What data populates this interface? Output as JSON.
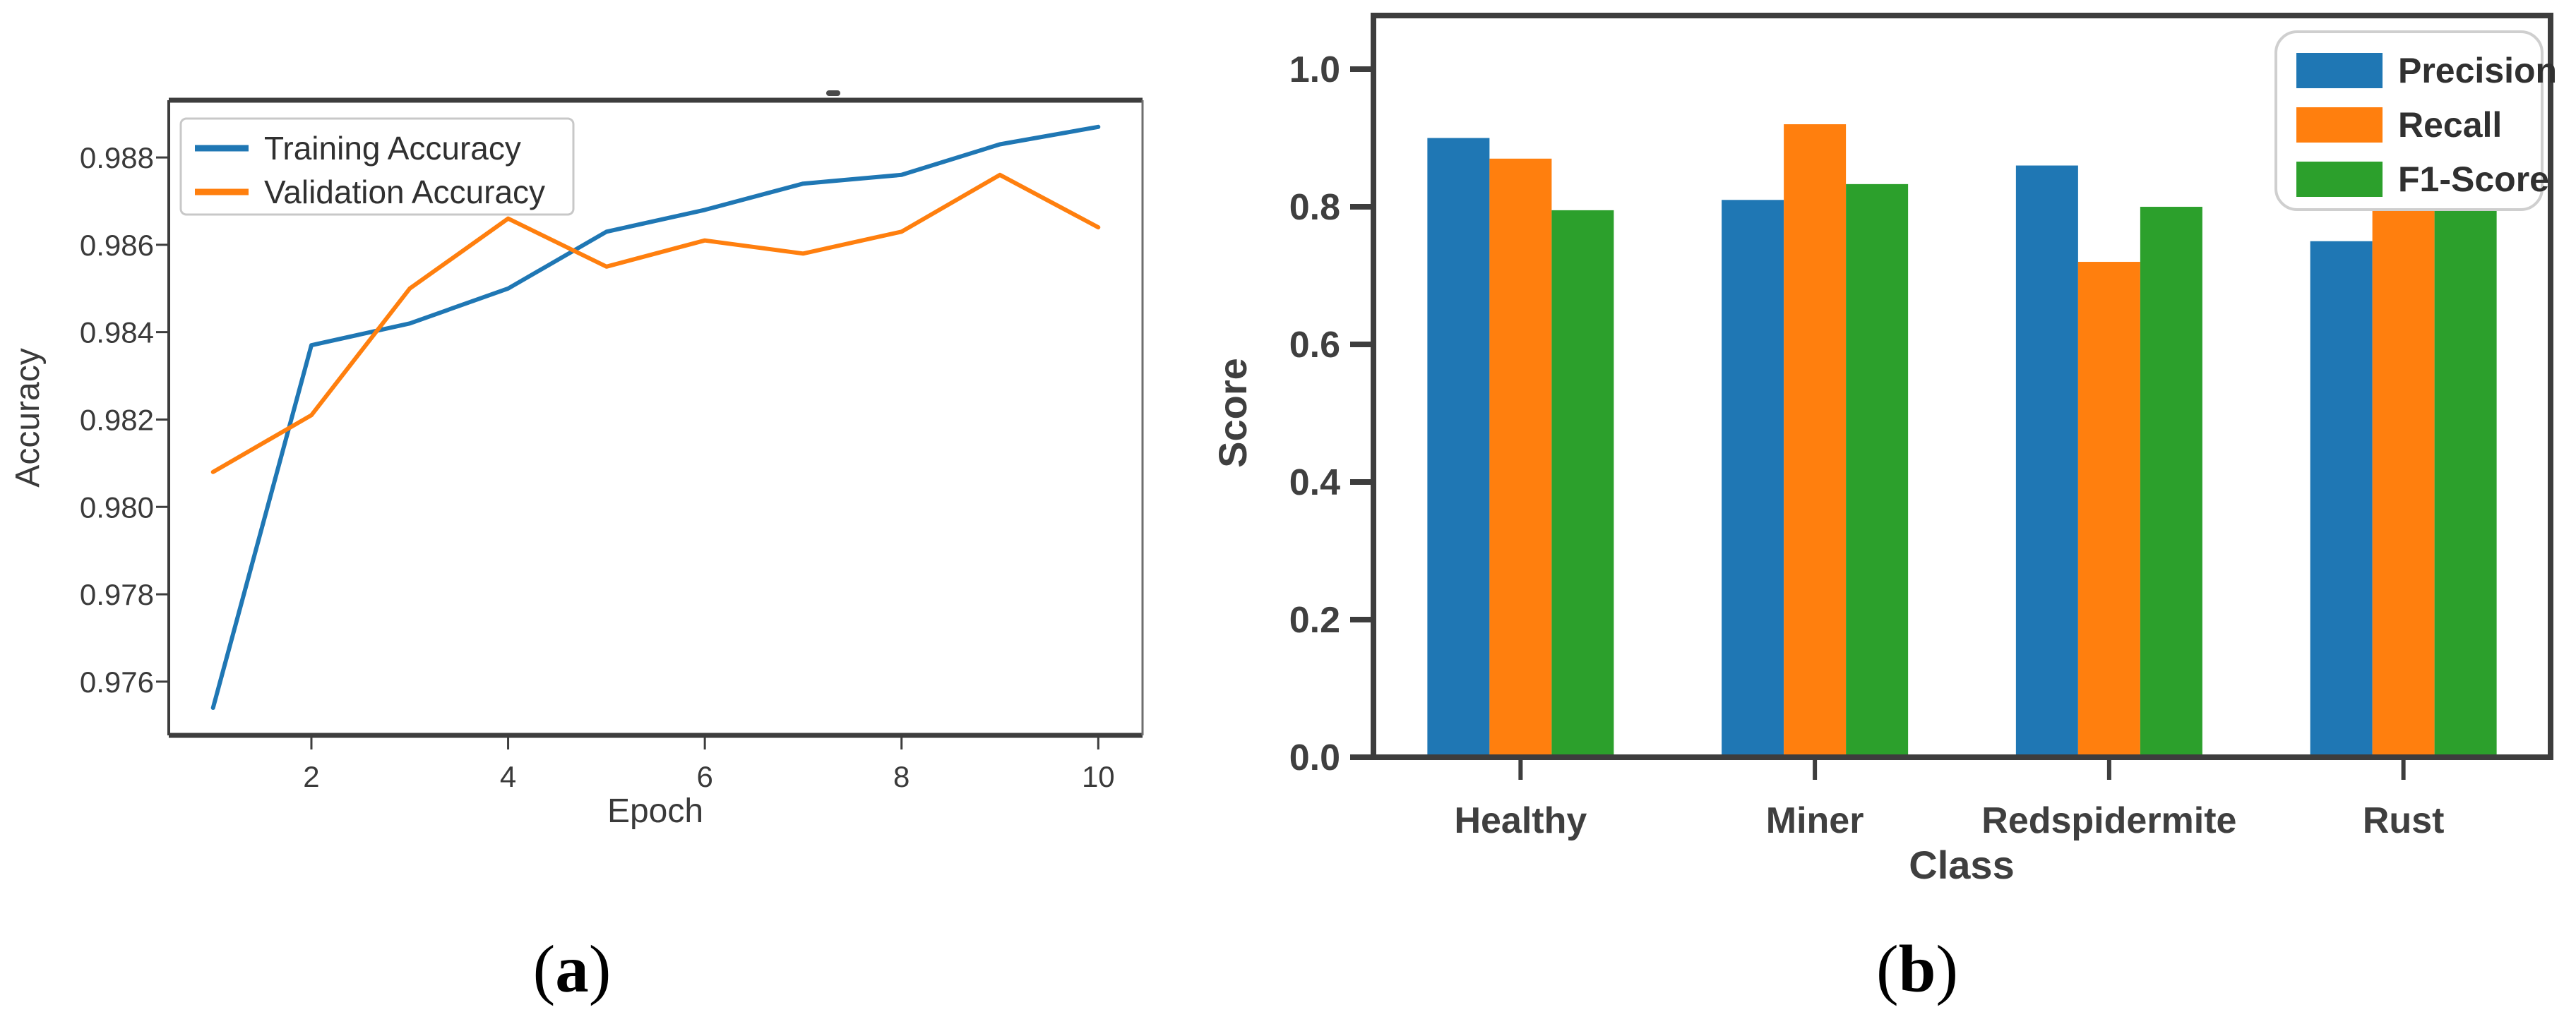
{
  "figure": {
    "background": "#ffffff",
    "captions": [
      {
        "open": "(",
        "letter": "a",
        "close": ")"
      },
      {
        "open": "(",
        "letter": "b",
        "close": ")"
      }
    ]
  },
  "chart_data": [
    {
      "id": "accuracy-line-chart",
      "type": "line",
      "title": "",
      "xlabel": "Epoch",
      "ylabel": "Accuracy",
      "x": [
        1,
        2,
        3,
        4,
        5,
        6,
        7,
        8,
        9,
        10
      ],
      "xticks": [
        2,
        4,
        6,
        8,
        10
      ],
      "yticks": [
        0.976,
        0.978,
        0.98,
        0.982,
        0.984,
        0.986,
        0.988
      ],
      "xlim": [
        0.55,
        10.45
      ],
      "ylim": [
        0.97477,
        0.98931
      ],
      "grid": false,
      "legend_position": "upper left",
      "series": [
        {
          "name": "Training Accuracy",
          "color": "#1f77b4",
          "values": [
            0.9754,
            0.9837,
            0.9842,
            0.985,
            0.9863,
            0.9868,
            0.9874,
            0.9876,
            0.9883,
            0.9887
          ]
        },
        {
          "name": "Validation Accuracy",
          "color": "#ff7f0e",
          "values": [
            0.9808,
            0.9821,
            0.985,
            0.9866,
            0.9855,
            0.9861,
            0.9858,
            0.9863,
            0.9876,
            0.9864
          ]
        }
      ]
    },
    {
      "id": "metrics-bar-chart",
      "type": "bar",
      "title": "",
      "xlabel": "Class",
      "ylabel": "Score",
      "categories": [
        "Healthy",
        "Miner",
        "Redspidermite",
        "Rust"
      ],
      "yticks": [
        0.0,
        0.2,
        0.4,
        0.6,
        0.8,
        1.0
      ],
      "ylim": [
        0,
        1.078
      ],
      "grid": false,
      "legend_position": "upper right",
      "series": [
        {
          "name": "Precision",
          "color": "#1f77b4",
          "values": [
            0.9,
            0.81,
            0.86,
            0.75
          ]
        },
        {
          "name": "Recall",
          "color": "#ff7f0e",
          "values": [
            0.87,
            0.92,
            0.72,
            0.81
          ]
        },
        {
          "name": "F1-Score",
          "color": "#2ca02c",
          "values": [
            0.795,
            0.833,
            0.8,
            0.795
          ]
        }
      ]
    }
  ]
}
